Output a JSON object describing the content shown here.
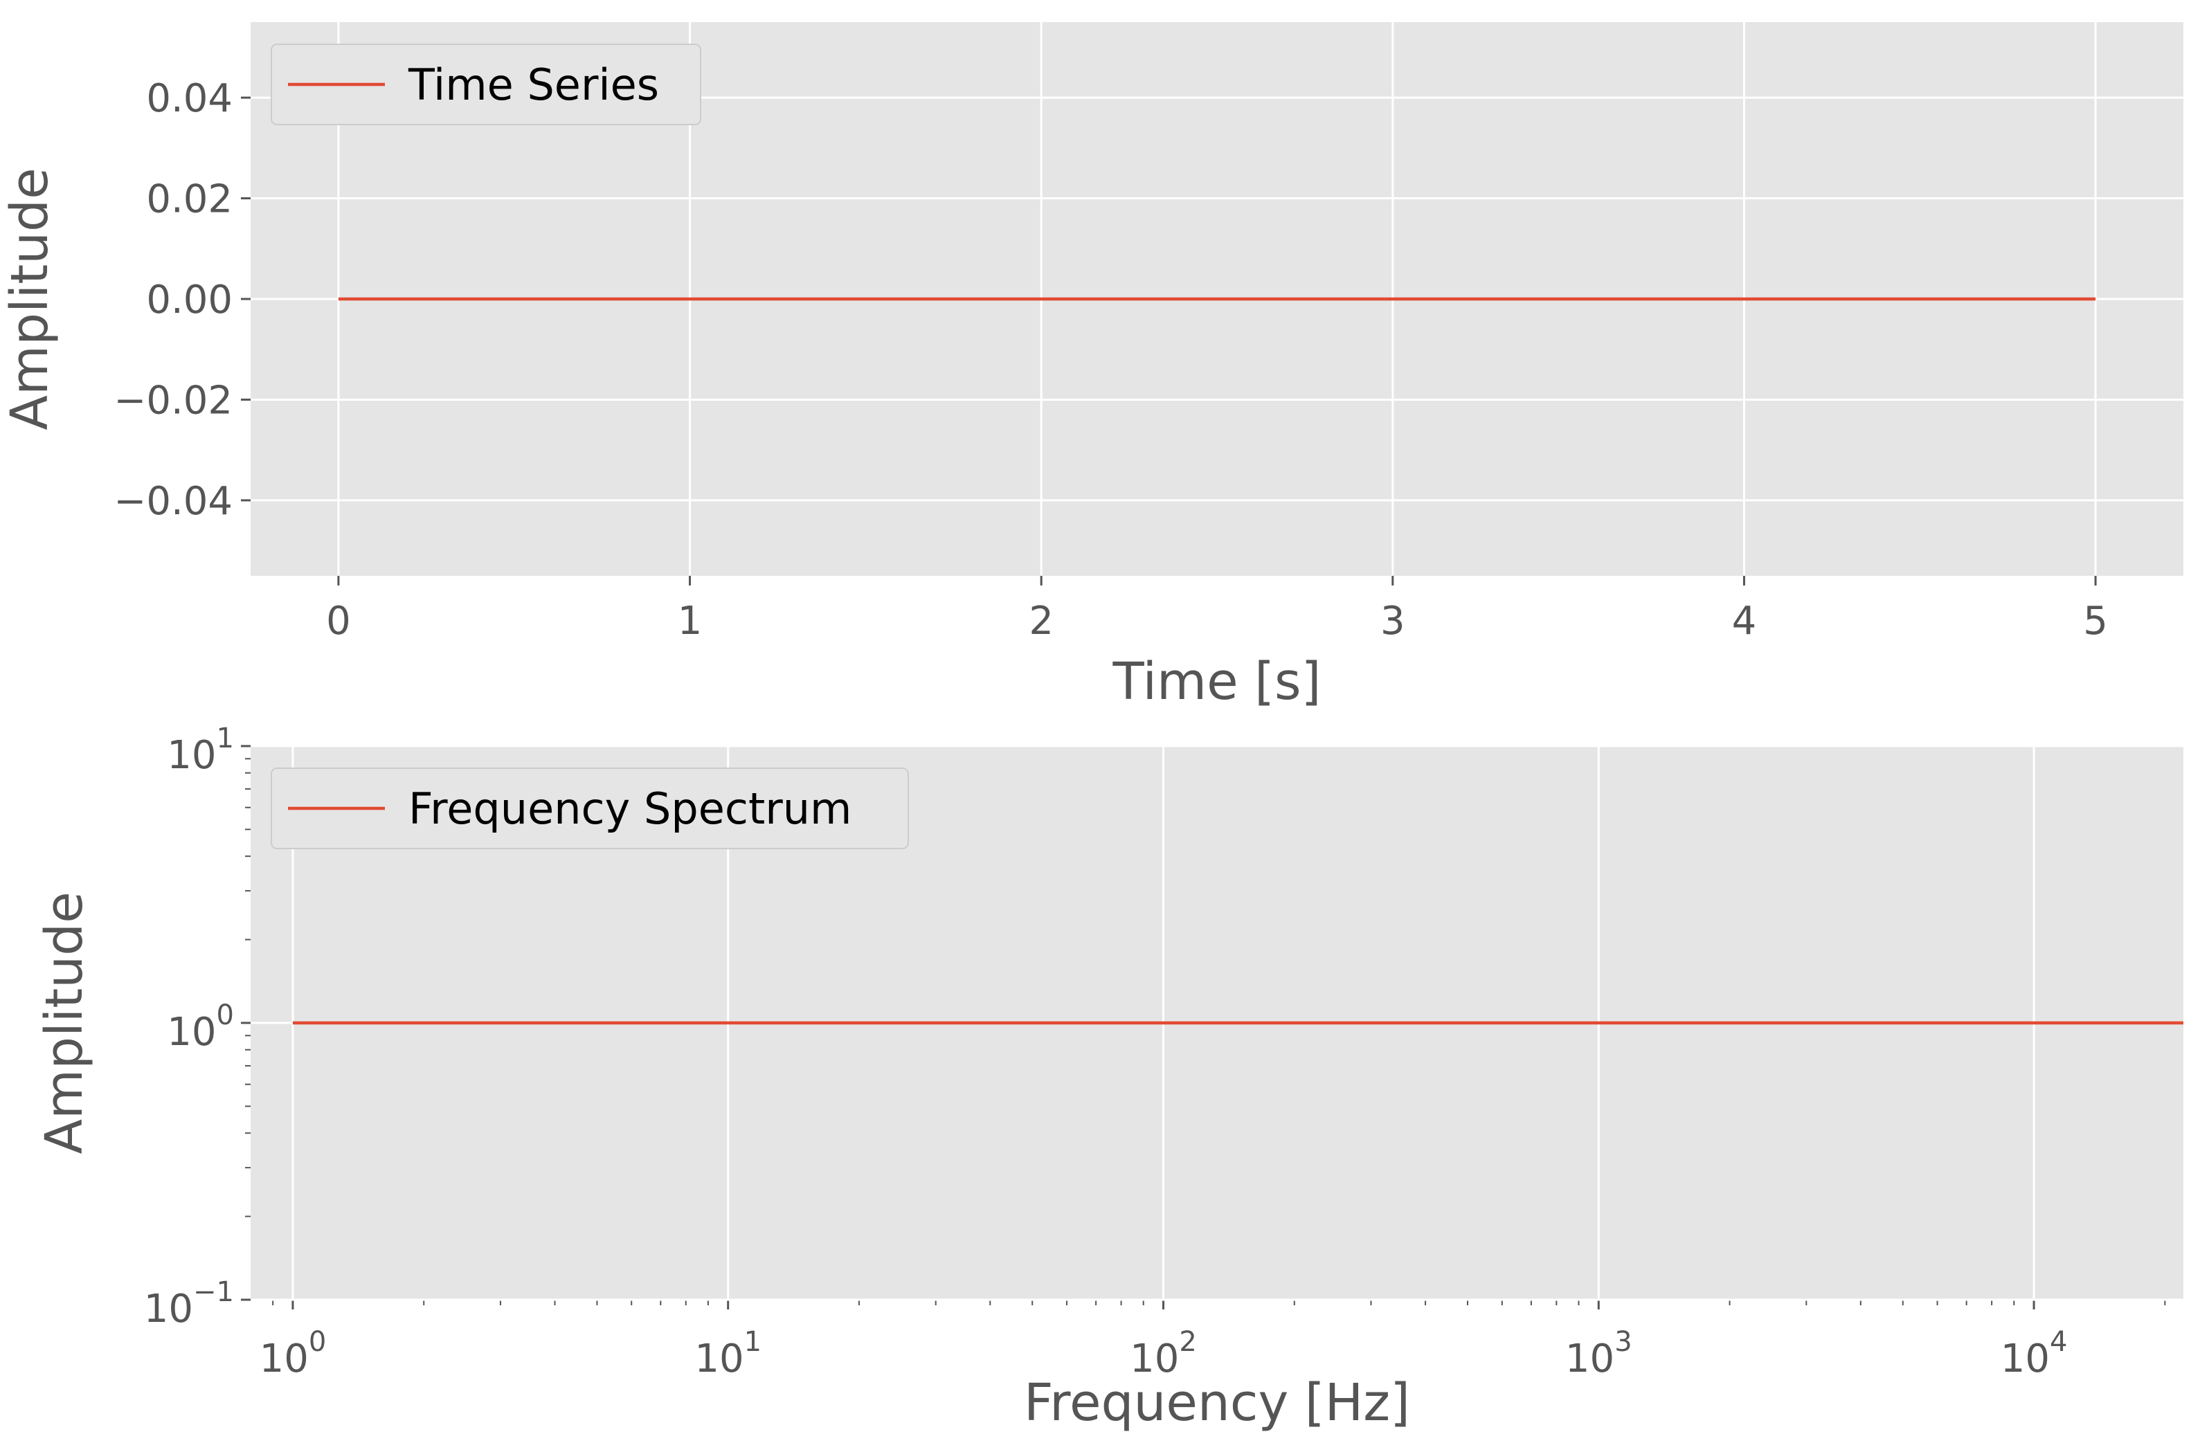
{
  "chart_data": [
    {
      "type": "line",
      "xlabel": "Time [s]",
      "ylabel": "Amplitude",
      "xlim": [
        -0.25,
        5.25
      ],
      "ylim": [
        -0.055,
        0.055
      ],
      "x_scale": "linear",
      "y_scale": "linear",
      "x_ticks": [
        0,
        1,
        2,
        3,
        4,
        5
      ],
      "x_tick_labels": [
        "0",
        "1",
        "2",
        "3",
        "4",
        "5"
      ],
      "y_ticks": [
        0.04,
        0.02,
        0.0,
        -0.02,
        -0.04
      ],
      "y_tick_labels": [
        "0.04",
        "0.02",
        "0.00",
        "−0.02",
        "−0.04"
      ],
      "grid": true,
      "legend_position": "top-left",
      "series": [
        {
          "name": "Time Series",
          "x": [
            0,
            5
          ],
          "y": [
            0,
            0
          ],
          "color": "#E24A33"
        }
      ]
    },
    {
      "type": "line",
      "xlabel": "Frequency [Hz]",
      "ylabel": "Amplitude",
      "xlim": [
        0.8,
        22050
      ],
      "ylim": [
        0.1,
        10
      ],
      "x_scale": "log",
      "y_scale": "log",
      "x_ticks": [
        1,
        10,
        100,
        1000,
        10000
      ],
      "x_tick_labels": [
        {
          "base": "10",
          "exp": "0"
        },
        {
          "base": "10",
          "exp": "1"
        },
        {
          "base": "10",
          "exp": "2"
        },
        {
          "base": "10",
          "exp": "3"
        },
        {
          "base": "10",
          "exp": "4"
        }
      ],
      "y_ticks": [
        10,
        1,
        0.1
      ],
      "y_tick_labels": [
        {
          "base": "10",
          "exp": "1"
        },
        {
          "base": "10",
          "exp": "0"
        },
        {
          "base": "10",
          "exp": "−1"
        }
      ],
      "grid": true,
      "legend_position": "top-left",
      "series": [
        {
          "name": "Frequency Spectrum",
          "x": [
            1,
            22050
          ],
          "y": [
            1,
            1
          ],
          "color": "#E24A33"
        }
      ]
    }
  ]
}
